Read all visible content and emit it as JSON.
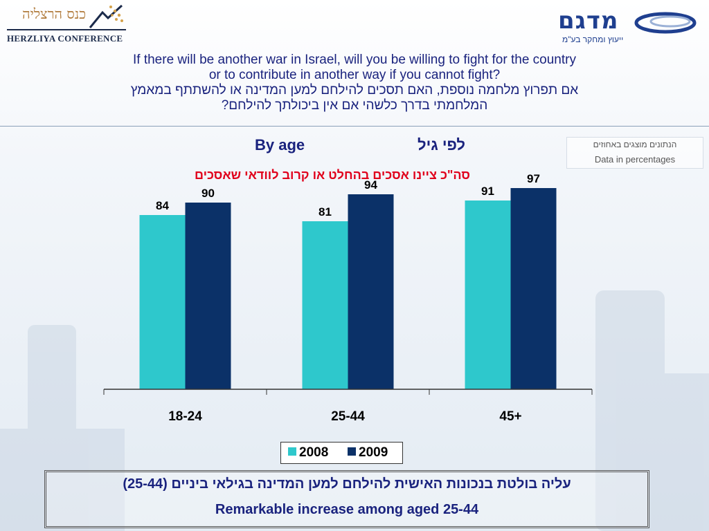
{
  "logos": {
    "left_hebrew": "כנס הרצליה",
    "left_english": "HERZLIYA CONFERENCE",
    "right_name": "מדגם",
    "right_tagline": "ייעוץ ומחקר בע\"מ"
  },
  "question": {
    "english_line1": "If there will be another war in Israel, will you be willing to fight for the country",
    "english_line2": "or to contribute in another way if you cannot fight?",
    "hebrew_line1": "אם תפרוץ מלחמה נוספת, האם תסכים להילחם למען המדינה או להשתתף במאמץ",
    "hebrew_line2": "המלחמתי בדרך כלשהי אם אין ביכולתך להילחם?"
  },
  "note": {
    "hebrew": "הנתונים מוצגים באחוזים",
    "english": "Data in percentages"
  },
  "colors": {
    "series_2008": "#2ec8cc",
    "series_2009": "#0b3168",
    "heading": "#1a237e",
    "subtitle": "#e0001b"
  },
  "chart_data": {
    "type": "bar",
    "title_english": "By age",
    "title_hebrew": "לפי גיל",
    "subtitle": "סה\"כ ציינו אסכים בהחלט או קרוב לוודאי שאסכים",
    "categories": [
      "18-24",
      "25-44",
      "45+"
    ],
    "series": [
      {
        "name": "2008",
        "values": [
          84,
          81,
          91
        ]
      },
      {
        "name": "2009",
        "values": [
          90,
          94,
          97
        ]
      }
    ],
    "xlabel": "",
    "ylabel": "",
    "ylim": [
      0,
      100
    ],
    "grid": false,
    "legend": "bottom-center"
  },
  "summary": {
    "hebrew": "עליה בולטת בנכונות האישית להילחם למען המדינה בגילאי ביניים (25-44)",
    "english": "Remarkable increase among aged 25-44"
  }
}
